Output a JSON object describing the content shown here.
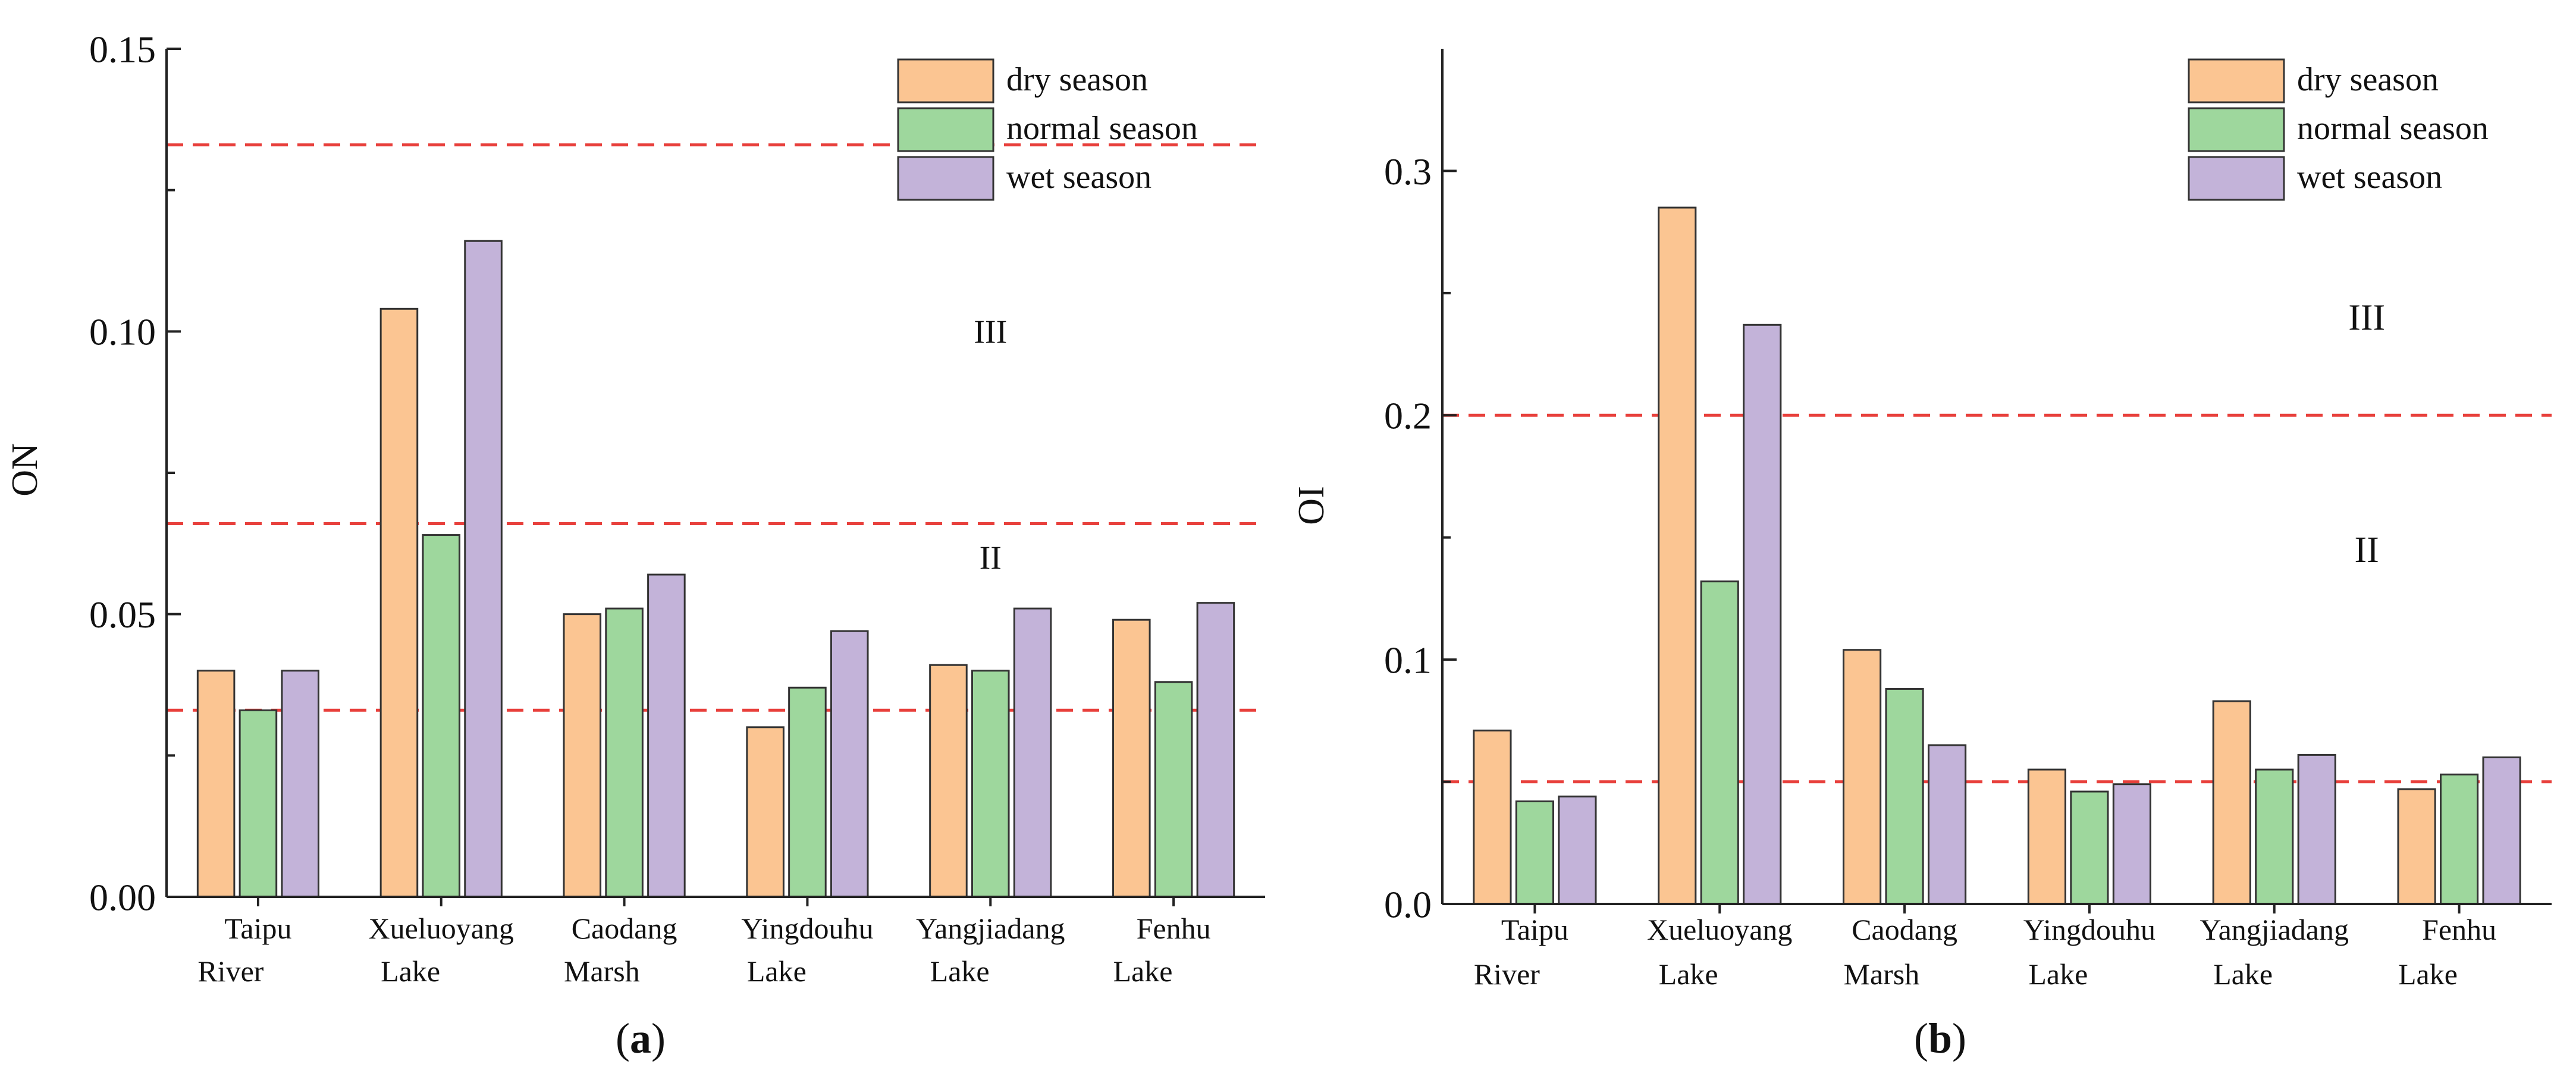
{
  "figure": {
    "series_names": [
      "dry season",
      "normal season",
      "wet season"
    ],
    "series_colors": [
      "#FBC592",
      "#9ED79D",
      "#C3B3D9"
    ],
    "reference_line_color": "#E8403C"
  },
  "chart_data": [
    {
      "type": "bar",
      "panel_label": "a",
      "title": "",
      "xlabel": "",
      "ylabel": "ON",
      "ylim": [
        0,
        0.15
      ],
      "yticks": [
        "0.00",
        "0.05",
        "0.10",
        "0.15"
      ],
      "ytick_values": [
        0,
        0.05,
        0.1,
        0.15
      ],
      "categories": [
        [
          "Taipu",
          "River"
        ],
        [
          "Xueluoyang",
          "Lake"
        ],
        [
          "Caodang",
          "Marsh"
        ],
        [
          "Yingdouhu",
          "Lake"
        ],
        [
          "Yangjiadang",
          "Lake"
        ],
        [
          "Fenhu",
          "Lake"
        ]
      ],
      "series": [
        {
          "name": "dry season",
          "values": [
            0.04,
            0.104,
            0.05,
            0.03,
            0.041,
            0.049
          ]
        },
        {
          "name": "normal season",
          "values": [
            0.033,
            0.064,
            0.051,
            0.037,
            0.04,
            0.038
          ]
        },
        {
          "name": "wet season",
          "values": [
            0.04,
            0.116,
            0.057,
            0.047,
            0.051,
            0.052
          ]
        }
      ],
      "reference_lines": [
        0.033,
        0.066,
        0.133
      ],
      "zone_labels": [
        {
          "text": "II",
          "x_category": 4.5,
          "y": 0.058
        },
        {
          "text": "III",
          "x_category": 4.5,
          "y": 0.098
        }
      ],
      "legend": "top-right"
    },
    {
      "type": "bar",
      "panel_label": "b",
      "title": "",
      "xlabel": "",
      "ylabel": "OI",
      "ylim": [
        0,
        0.35
      ],
      "yticks": [
        "0.0",
        "0.1",
        "0.2",
        "0.3"
      ],
      "ytick_values": [
        0,
        0.1,
        0.2,
        0.3
      ],
      "categories": [
        [
          "Taipu",
          "River"
        ],
        [
          "Xueluoyang",
          "Lake"
        ],
        [
          "Caodang",
          "Marsh"
        ],
        [
          "Yingdouhu",
          "Lake"
        ],
        [
          "Yangjiadang",
          "Lake"
        ],
        [
          "Fenhu",
          "Lake"
        ]
      ],
      "series": [
        {
          "name": "dry season",
          "values": [
            0.071,
            0.285,
            0.104,
            0.055,
            0.083,
            0.047
          ]
        },
        {
          "name": "normal season",
          "values": [
            0.042,
            0.132,
            0.088,
            0.046,
            0.055,
            0.053
          ]
        },
        {
          "name": "wet season",
          "values": [
            0.044,
            0.237,
            0.065,
            0.049,
            0.061,
            0.06
          ]
        }
      ],
      "reference_lines": [
        0.05,
        0.2
      ],
      "zone_labels": [
        {
          "text": "II",
          "x_category": 5.0,
          "y": 0.14
        },
        {
          "text": "III",
          "x_category": 5.0,
          "y": 0.235
        }
      ],
      "legend": "top-right"
    }
  ]
}
